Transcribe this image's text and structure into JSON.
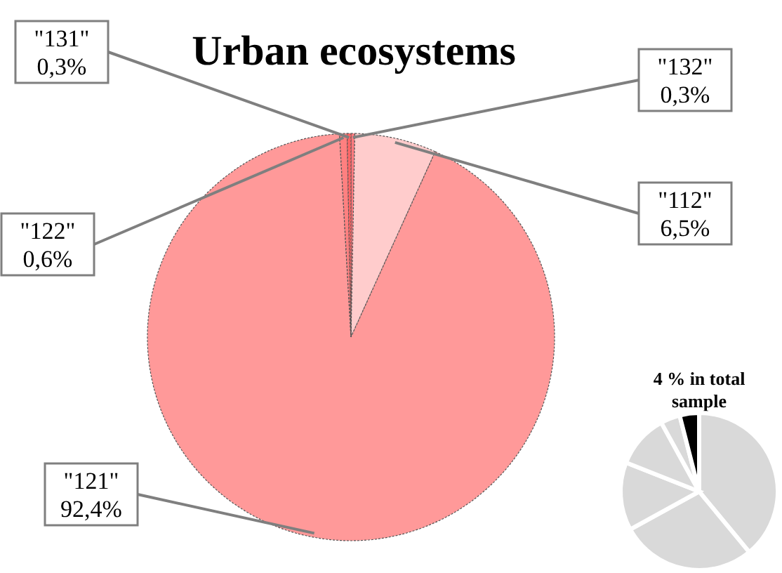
{
  "chart_data": [
    {
      "type": "pie",
      "title": "Urban ecosystems",
      "categories": [
        "\"132\"",
        "\"112\"",
        "\"121\"",
        "\"122\"",
        "\"131\""
      ],
      "values": [
        0.3,
        6.5,
        92.4,
        0.6,
        0.3
      ],
      "value_labels": [
        "0,3%",
        "6,5%",
        "92,4%",
        "0,6%",
        "0,3%"
      ],
      "colors": [
        "#ff7c80",
        "#ffcccc",
        "#ff9999",
        "#ff8080",
        "#ff6666"
      ]
    },
    {
      "type": "pie",
      "title": "4 % in total sample",
      "values": [
        39,
        28,
        14,
        11,
        4,
        4
      ],
      "colors": [
        "#d9d9d9",
        "#d9d9d9",
        "#d9d9d9",
        "#d9d9d9",
        "#d9d9d9",
        "#000000"
      ]
    }
  ]
}
